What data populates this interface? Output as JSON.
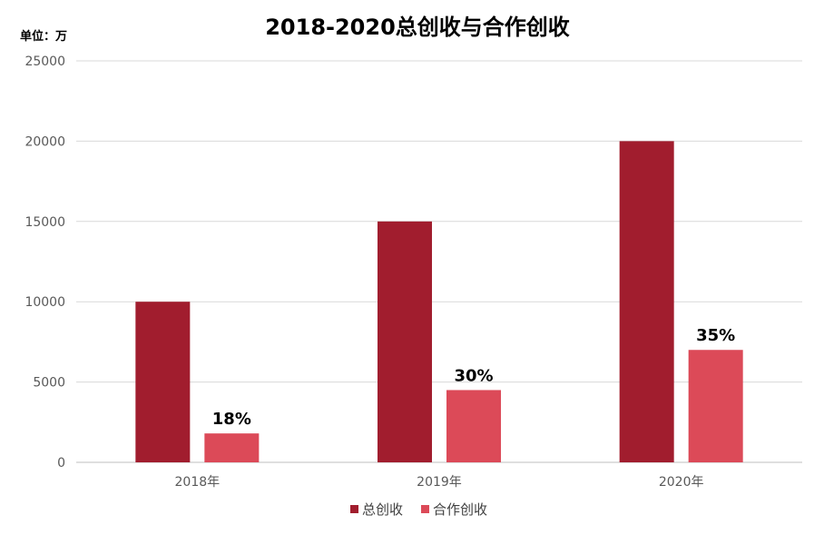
{
  "chart_data": {
    "type": "bar",
    "title": "2018-2020总创收与合作创收",
    "unit_label": "单位：万",
    "categories": [
      "2018年",
      "2019年",
      "2020年"
    ],
    "ylim": [
      0,
      25000
    ],
    "yticks": [
      0,
      5000,
      10000,
      15000,
      20000,
      25000
    ],
    "grid": true,
    "legend_position": "bottom",
    "series": [
      {
        "name": "总创收",
        "values": [
          10000,
          15000,
          20000
        ],
        "color": "#a11d2e"
      },
      {
        "name": "合作创收",
        "values": [
          1800,
          4500,
          7000
        ],
        "color": "#dc4a58",
        "data_labels": [
          "18%",
          "30%",
          "35%"
        ]
      }
    ]
  }
}
